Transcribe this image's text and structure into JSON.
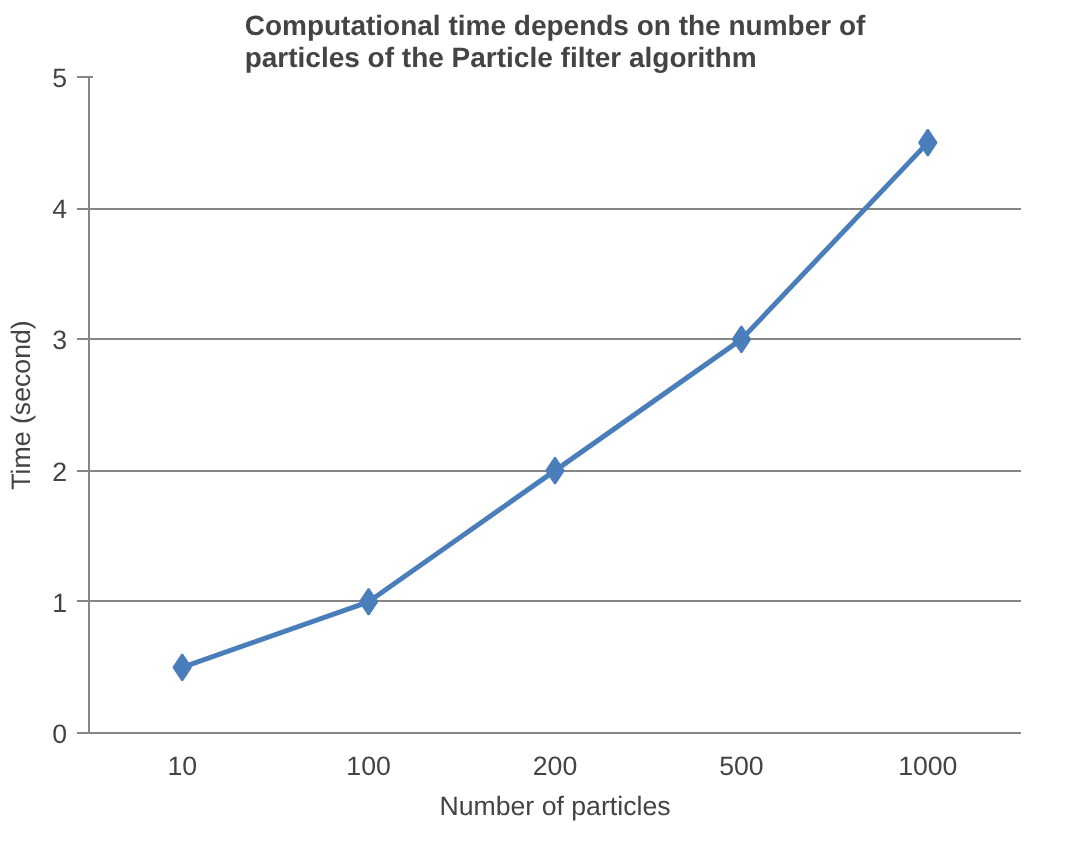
{
  "chart_data": {
    "type": "line",
    "title": "Computational time depends on the number of particles of the Particle filter algorithm",
    "xlabel": "Number of particles",
    "ylabel": "Time (second)",
    "categories": [
      "10",
      "100",
      "200",
      "500",
      "1000"
    ],
    "series": [
      {
        "color": "#4a7ebb",
        "values": [
          0.5,
          1,
          2,
          3,
          4.5
        ]
      }
    ],
    "ylim": [
      0,
      5
    ],
    "yticks": [
      0,
      1,
      2,
      3,
      4,
      5
    ],
    "grid": "y",
    "marker": "diamond",
    "line_style": "solid"
  }
}
